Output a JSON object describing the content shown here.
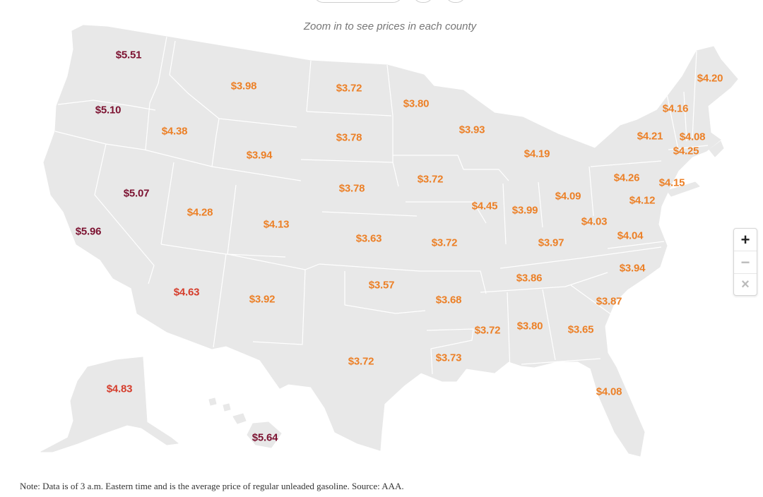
{
  "hint": "Zoom in to see prices in each county",
  "note": "Note: Data is of 3 a.m. Eastern time and is the average price of regular unleaded gasoline. Source: AAA.",
  "colors": {
    "land": "#e8e8e8",
    "border": "#ffffff",
    "low": "#ec8027",
    "mid": "#d53d2c",
    "high": "#7c1231"
  },
  "states": [
    {
      "state": "WA",
      "price": "$5.51",
      "level": "high"
    },
    {
      "state": "OR",
      "price": "$5.10",
      "level": "high"
    },
    {
      "state": "CA",
      "price": "$5.96",
      "level": "high"
    },
    {
      "state": "NV",
      "price": "$5.07",
      "level": "high"
    },
    {
      "state": "ID",
      "price": "$4.38",
      "level": "low"
    },
    {
      "state": "MT",
      "price": "$3.98",
      "level": "low"
    },
    {
      "state": "WY",
      "price": "$3.94",
      "level": "low"
    },
    {
      "state": "UT",
      "price": "$4.28",
      "level": "low"
    },
    {
      "state": "AZ",
      "price": "$4.63",
      "level": "mid"
    },
    {
      "state": "CO",
      "price": "$4.13",
      "level": "low"
    },
    {
      "state": "NM",
      "price": "$3.92",
      "level": "low"
    },
    {
      "state": "ND",
      "price": "$3.72",
      "level": "low"
    },
    {
      "state": "SD",
      "price": "$3.78",
      "level": "low"
    },
    {
      "state": "NE",
      "price": "$3.78",
      "level": "low"
    },
    {
      "state": "KS",
      "price": "$3.63",
      "level": "low"
    },
    {
      "state": "OK",
      "price": "$3.57",
      "level": "low"
    },
    {
      "state": "TX",
      "price": "$3.72",
      "level": "low"
    },
    {
      "state": "MN",
      "price": "$3.80",
      "level": "low"
    },
    {
      "state": "IA",
      "price": "$3.72",
      "level": "low"
    },
    {
      "state": "MO",
      "price": "$3.72",
      "level": "low"
    },
    {
      "state": "AR",
      "price": "$3.68",
      "level": "low"
    },
    {
      "state": "LA",
      "price": "$3.73",
      "level": "low"
    },
    {
      "state": "WI",
      "price": "$3.93",
      "level": "low"
    },
    {
      "state": "IL",
      "price": "$4.45",
      "level": "low"
    },
    {
      "state": "MI",
      "price": "$4.19",
      "level": "low"
    },
    {
      "state": "IN",
      "price": "$3.99",
      "level": "low"
    },
    {
      "state": "OH",
      "price": "$4.09",
      "level": "low"
    },
    {
      "state": "KY",
      "price": "$3.97",
      "level": "low"
    },
    {
      "state": "TN",
      "price": "$3.86",
      "level": "low"
    },
    {
      "state": "MS",
      "price": "$3.72",
      "level": "low"
    },
    {
      "state": "AL",
      "price": "$3.80",
      "level": "low"
    },
    {
      "state": "GA",
      "price": "$3.65",
      "level": "low"
    },
    {
      "state": "FL",
      "price": "$4.08",
      "level": "low"
    },
    {
      "state": "SC",
      "price": "$3.87",
      "level": "low"
    },
    {
      "state": "NC",
      "price": "$3.94",
      "level": "low"
    },
    {
      "state": "VA",
      "price": "$4.04",
      "level": "low"
    },
    {
      "state": "WV",
      "price": "$4.03",
      "level": "low"
    },
    {
      "state": "PA",
      "price": "$4.26",
      "level": "low"
    },
    {
      "state": "MD",
      "price": "$4.12",
      "level": "low"
    },
    {
      "state": "NJ",
      "price": "$4.15",
      "level": "low"
    },
    {
      "state": "NY",
      "price": "$4.21",
      "level": "low"
    },
    {
      "state": "VT",
      "price": "$4.16",
      "level": "low"
    },
    {
      "state": "NH",
      "price": "$4.08",
      "level": "low"
    },
    {
      "state": "MA",
      "price": "$4.25",
      "level": "low"
    },
    {
      "state": "ME",
      "price": "$4.20",
      "level": "low"
    },
    {
      "state": "AK",
      "price": "$4.83",
      "level": "mid"
    },
    {
      "state": "HI",
      "price": "$5.64",
      "level": "high"
    }
  ],
  "zoom": {
    "in_glyph": "+",
    "out_glyph": "−",
    "reset_glyph": "×"
  }
}
